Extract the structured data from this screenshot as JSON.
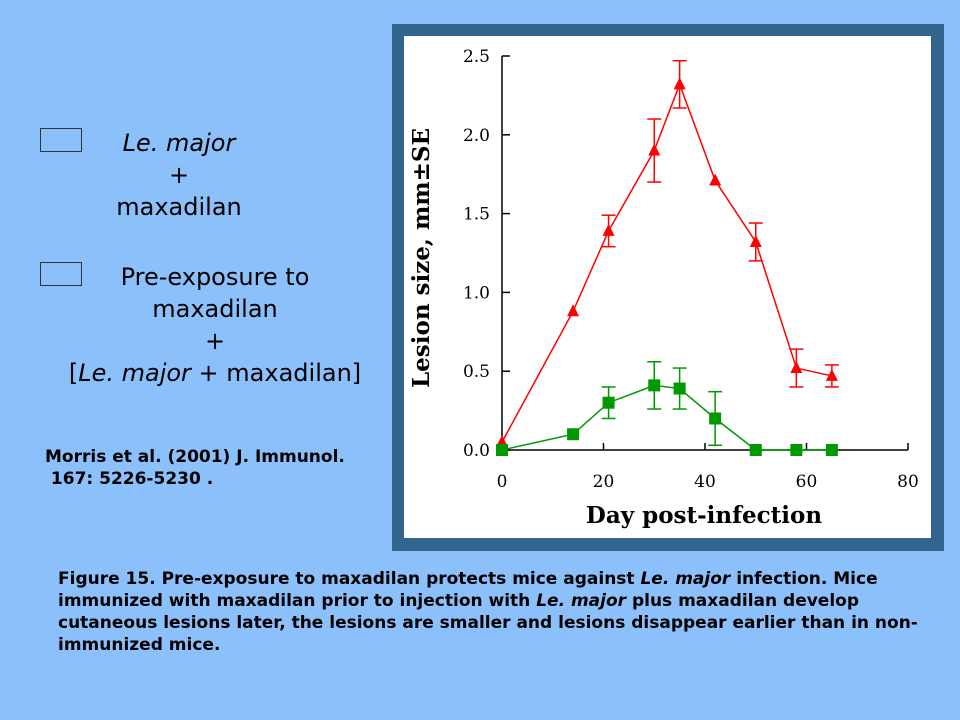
{
  "legend": [
    {
      "color": "#ff0000",
      "lines": [
        [
          {
            "text": "Le. major",
            "italic": true
          }
        ],
        [
          {
            "text": "+",
            "italic": false
          }
        ],
        [
          {
            "text": "maxadilan",
            "italic": false
          }
        ]
      ]
    },
    {
      "color": "#00cc66",
      "lines": [
        [
          {
            "text": "Pre-exposure to",
            "italic": false
          }
        ],
        [
          {
            "text": "maxadilan",
            "italic": false
          }
        ],
        [
          {
            "text": "+",
            "italic": false
          }
        ],
        [
          {
            "text": "[",
            "italic": false
          },
          {
            "text": "Le. major",
            "italic": true
          },
          {
            "text": " + maxadilan]",
            "italic": false
          }
        ]
      ]
    }
  ],
  "citation": "Morris et al. (2001) J. Immunol.\n 167: 5226-5230 .",
  "caption": [
    {
      "text": "Figure 15. Pre-exposure to maxadilan protects mice against ",
      "italic": false
    },
    {
      "text": "Le. major",
      "italic": true
    },
    {
      "text": " infection. Mice immunized with maxadilan prior to injection with ",
      "italic": false
    },
    {
      "text": "Le. major",
      "italic": true
    },
    {
      "text": " plus maxadilan develop cutaneous lesions later, the lesions are smaller and lesions disappear earlier than in non-immunized mice.",
      "italic": false
    }
  ],
  "chart_data": {
    "type": "line",
    "xlabel": "Day post-infection",
    "ylabel": "Lesion size, mm±SE",
    "xlim": [
      0,
      80
    ],
    "ylim": [
      0,
      2.5
    ],
    "xticks": [
      "0",
      "20",
      "40",
      "60",
      "80"
    ],
    "yticks": [
      "0.0",
      "0.5",
      "1.0",
      "1.5",
      "2.0",
      "2.5"
    ],
    "series": [
      {
        "name": "Le. major + maxadilan",
        "color": "#ff0000",
        "marker": "triangle",
        "x": [
          0,
          14,
          21,
          30,
          35,
          42,
          50,
          58,
          65
        ],
        "y": [
          0.05,
          0.88,
          1.39,
          1.9,
          2.32,
          1.71,
          1.32,
          0.52,
          0.47
        ],
        "err": [
          0,
          0,
          0.1,
          0.2,
          0.15,
          0,
          0.12,
          0.12,
          0.07
        ]
      },
      {
        "name": "Pre-exposure to maxadilan + [Le. major + maxadilan]",
        "color": "#009900",
        "marker": "square",
        "x": [
          0,
          14,
          21,
          30,
          35,
          42,
          50,
          58,
          65
        ],
        "y": [
          0,
          0.1,
          0.3,
          0.41,
          0.39,
          0.2,
          0,
          0,
          0
        ],
        "err": [
          0,
          0,
          0.1,
          0.15,
          0.13,
          0.17,
          0,
          0,
          0
        ]
      }
    ]
  }
}
